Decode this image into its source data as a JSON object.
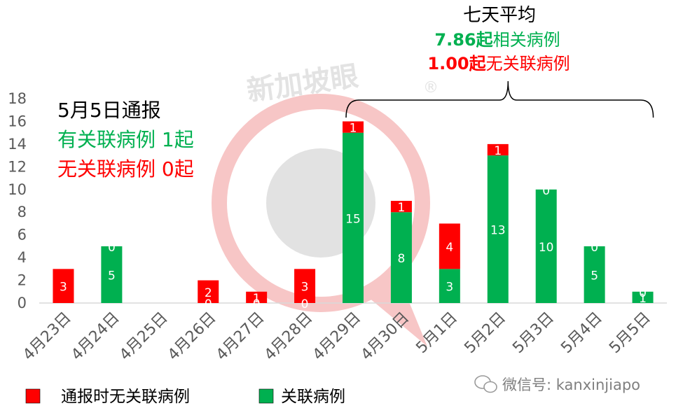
{
  "chart_data": {
    "type": "bar",
    "stacked": true,
    "categories": [
      "4月23日",
      "4月24日",
      "4月25日",
      "4月26日",
      "4月27日",
      "4月28日",
      "4月29日",
      "4月30日",
      "5月1日",
      "5月2日",
      "5月3日",
      "5月4日",
      "5月5日"
    ],
    "series": [
      {
        "name": "关联病例",
        "color": "#00b050",
        "values": [
          null,
          5,
          null,
          0,
          0,
          0,
          15,
          8,
          3,
          13,
          10,
          5,
          1
        ]
      },
      {
        "name": "通报时无关联病例",
        "color": "#ff0000",
        "values": [
          3,
          0,
          null,
          2,
          1,
          3,
          1,
          1,
          4,
          1,
          0,
          0,
          0
        ]
      }
    ],
    "ylim": [
      0,
      18
    ],
    "yticks": [
      0,
      2,
      4,
      6,
      8,
      10,
      12,
      14,
      16,
      18
    ],
    "grid": false,
    "legend_position": "bottom"
  },
  "report": {
    "title": "5月5日通报",
    "related": "有关联病例 1起",
    "unrelated": "无关联病例 0起"
  },
  "average": {
    "heading": "七天平均",
    "related_value": "7.86起",
    "related_label": "相关病例",
    "unrelated_value": "1.00起",
    "unrelated_label": "无关联病例",
    "range_start": "4月29日",
    "range_end": "5月5日"
  },
  "legend": [
    {
      "label": "通报时无关联病例",
      "color": "#ff0000"
    },
    {
      "label": "关联病例",
      "color": "#00b050"
    }
  ],
  "watermark": {
    "brand": "新加坡眼",
    "registered": "®",
    "wechat": "微信号: kanxinjiapo"
  },
  "colors": {
    "green": "#00b050",
    "red": "#ff0000",
    "axis": "#d9d9d9",
    "tick_text": "#595959"
  }
}
